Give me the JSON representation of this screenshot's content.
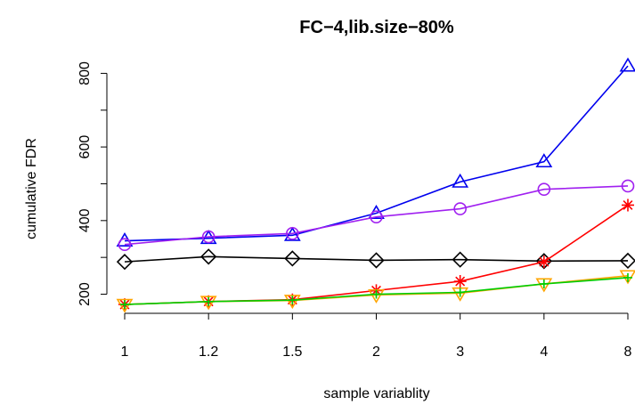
{
  "chart_data": {
    "type": "line",
    "title": "FC−4,lib.size−80%",
    "xlabel": "sample variablity",
    "ylabel": "cumulative FDR",
    "categories": [
      "1",
      "1.2",
      "1.5",
      "2",
      "3",
      "4",
      "8"
    ],
    "y_ticks": [
      "200",
      "400",
      "600",
      "800"
    ],
    "ylim": [
      165,
      830
    ],
    "grid": false,
    "series": [
      {
        "color": "#0000ee",
        "marker": "triangle-up",
        "values": [
          345,
          352,
          360,
          420,
          505,
          560,
          820
        ]
      },
      {
        "color": "#a020f0",
        "marker": "circle",
        "values": [
          335,
          356,
          365,
          410,
          432,
          485,
          494
        ]
      },
      {
        "color": "#000000",
        "marker": "diamond",
        "values": [
          288,
          302,
          297,
          292,
          294,
          290,
          291
        ]
      },
      {
        "color": "#ff0000",
        "marker": "asterisk",
        "values": [
          172,
          180,
          185,
          210,
          235,
          288,
          442
        ]
      },
      {
        "color": "#ffa500",
        "marker": "triangle-down",
        "values": [
          172,
          180,
          183,
          198,
          203,
          228,
          250
        ]
      },
      {
        "color": "#00cd00",
        "marker": "plus",
        "values": [
          172,
          180,
          184,
          200,
          205,
          228,
          245
        ]
      }
    ]
  }
}
